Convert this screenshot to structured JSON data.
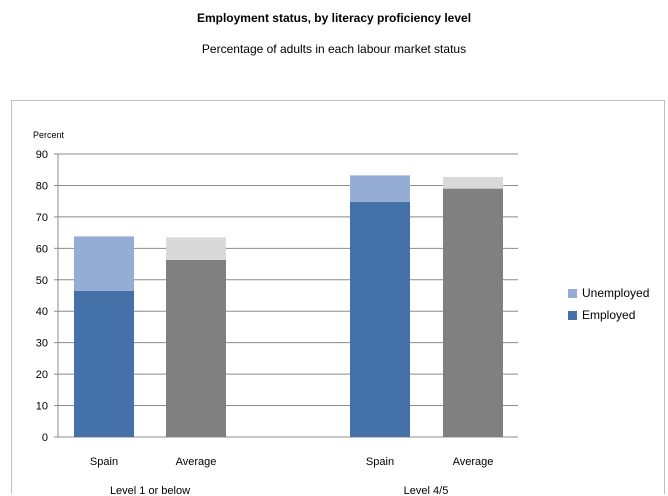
{
  "chart_data": {
    "type": "bar",
    "stacked": true,
    "title": "Employment status, by literacy proficiency level",
    "subtitle": "Percentage of adults in each labour market status",
    "ylabel": "Percent",
    "ylim": [
      0,
      90
    ],
    "yticks": [
      0,
      10,
      20,
      30,
      40,
      50,
      60,
      70,
      80,
      90
    ],
    "grid": true,
    "legend_position": "right",
    "groups": [
      {
        "label": "Level 1 or below",
        "categories": [
          "Spain",
          "Average"
        ]
      },
      {
        "label": "Level 4/5",
        "categories": [
          "Spain",
          "Average"
        ]
      }
    ],
    "categories": [
      "Spain",
      "Average",
      "Spain",
      "Average"
    ],
    "series": [
      {
        "name": "Employed",
        "values": [
          46.5,
          56.3,
          74.8,
          79.0
        ],
        "color_spain": "#4472a8",
        "color_average": "#808080"
      },
      {
        "name": "Unemployed",
        "values": [
          17.3,
          7.2,
          8.4,
          3.7
        ],
        "color_spain": "#95acd4",
        "color_average": "#d9d9d9"
      }
    ],
    "legend": [
      {
        "name": "Unemployed",
        "color": "#95acd4"
      },
      {
        "name": "Employed",
        "color": "#4472a8"
      }
    ]
  }
}
